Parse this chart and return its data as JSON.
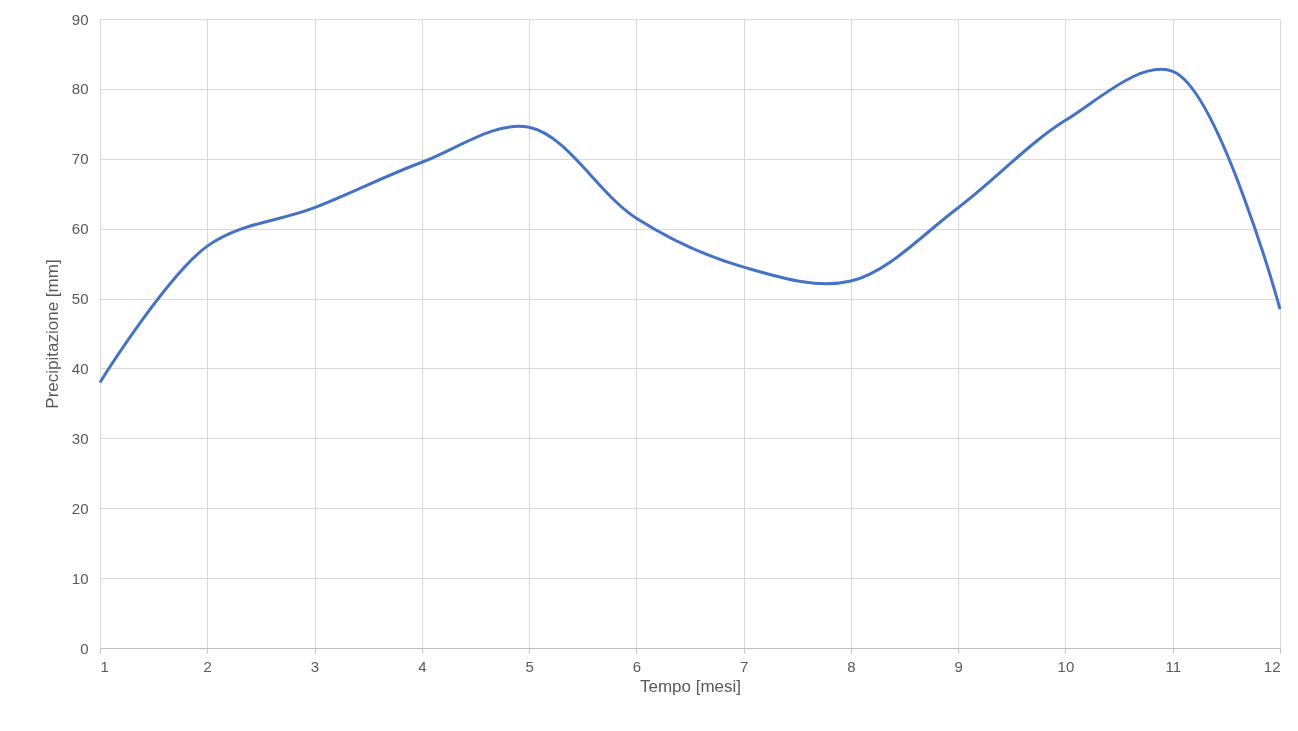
{
  "chart_data": {
    "type": "line",
    "xlabel": "Tempo [mesi]",
    "ylabel": "Precipitazione [mm]",
    "x": [
      1,
      2,
      3,
      4,
      5,
      6,
      7,
      8,
      9,
      10,
      11,
      12
    ],
    "series": [
      {
        "color": "#4472c4",
        "values": [
          38,
          57.5,
          63,
          69.5,
          74.5,
          61.5,
          54.5,
          52.5,
          63,
          75.5,
          82.5,
          48.5
        ]
      }
    ],
    "xlim": [
      1,
      12
    ],
    "xticks": [
      1,
      2,
      3,
      4,
      5,
      6,
      7,
      8,
      9,
      10,
      11,
      12
    ],
    "ylim": [
      0,
      90
    ],
    "yticks": [
      0,
      10,
      20,
      30,
      40,
      50,
      60,
      70,
      80,
      90
    ],
    "grid": true,
    "marker": "none",
    "line_style": "solid"
  }
}
